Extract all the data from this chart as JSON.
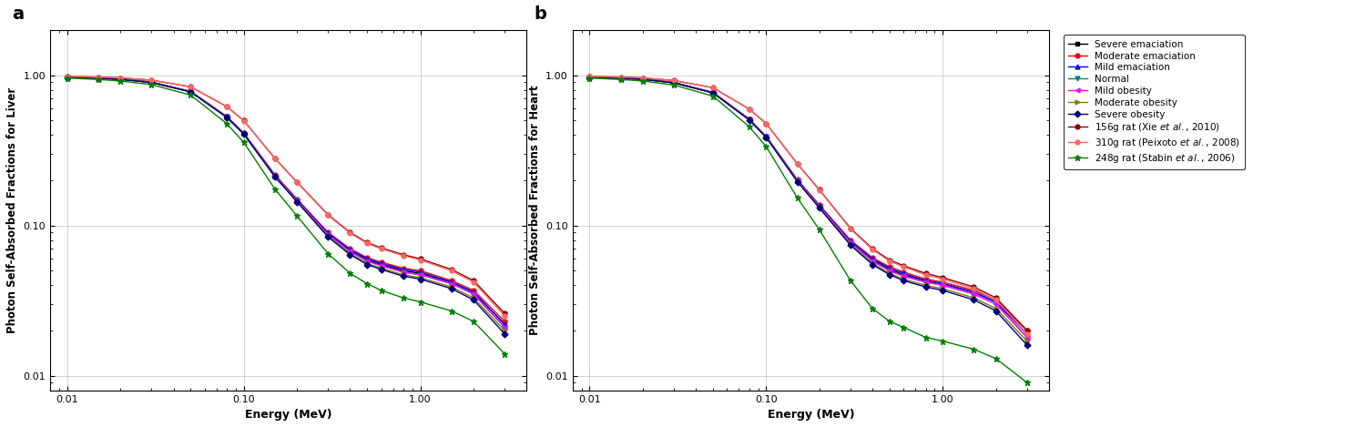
{
  "energy": [
    0.01,
    0.015,
    0.02,
    0.03,
    0.05,
    0.08,
    0.1,
    0.15,
    0.2,
    0.3,
    0.4,
    0.5,
    0.6,
    0.8,
    1.0,
    1.5,
    2.0,
    3.0
  ],
  "panel_a_ylabel": "Photon Self-Absorbed Fractions for Liver",
  "panel_b_ylabel": "Photon Self-Absorbed Fractions for Heart",
  "xlabel": "Energy (MeV)",
  "panel_a_label": "a",
  "panel_b_label": "b",
  "series": [
    {
      "label": "Severe emaciation",
      "color": "#000000",
      "marker": "s",
      "markersize": 3.5,
      "linewidth": 1.0,
      "liver": [
        0.975,
        0.96,
        0.945,
        0.9,
        0.78,
        0.53,
        0.41,
        0.215,
        0.148,
        0.088,
        0.068,
        0.059,
        0.055,
        0.05,
        0.048,
        0.042,
        0.036,
        0.022
      ],
      "heart": [
        0.975,
        0.96,
        0.945,
        0.895,
        0.768,
        0.51,
        0.39,
        0.2,
        0.135,
        0.078,
        0.059,
        0.051,
        0.047,
        0.043,
        0.041,
        0.036,
        0.031,
        0.019
      ]
    },
    {
      "label": "Moderate emaciation",
      "color": "#ff0000",
      "marker": "o",
      "markersize": 3.5,
      "linewidth": 1.0,
      "liver": [
        0.978,
        0.963,
        0.948,
        0.903,
        0.783,
        0.533,
        0.413,
        0.218,
        0.15,
        0.09,
        0.07,
        0.061,
        0.057,
        0.052,
        0.05,
        0.043,
        0.037,
        0.023
      ],
      "heart": [
        0.978,
        0.963,
        0.948,
        0.898,
        0.771,
        0.513,
        0.393,
        0.202,
        0.137,
        0.08,
        0.061,
        0.053,
        0.049,
        0.044,
        0.042,
        0.037,
        0.032,
        0.02
      ]
    },
    {
      "label": "Mild emaciation",
      "color": "#0000ff",
      "marker": "^",
      "markersize": 3.5,
      "linewidth": 1.0,
      "liver": [
        0.976,
        0.961,
        0.946,
        0.901,
        0.781,
        0.531,
        0.411,
        0.216,
        0.149,
        0.089,
        0.069,
        0.06,
        0.056,
        0.051,
        0.049,
        0.042,
        0.036,
        0.022
      ],
      "heart": [
        0.976,
        0.961,
        0.946,
        0.896,
        0.769,
        0.511,
        0.391,
        0.201,
        0.136,
        0.079,
        0.06,
        0.052,
        0.048,
        0.043,
        0.041,
        0.036,
        0.031,
        0.019
      ]
    },
    {
      "label": "Normal",
      "color": "#008080",
      "marker": "v",
      "markersize": 3.5,
      "linewidth": 1.0,
      "liver": [
        0.974,
        0.959,
        0.944,
        0.899,
        0.779,
        0.529,
        0.409,
        0.214,
        0.147,
        0.087,
        0.067,
        0.058,
        0.054,
        0.049,
        0.047,
        0.041,
        0.035,
        0.021
      ],
      "heart": [
        0.974,
        0.959,
        0.944,
        0.894,
        0.767,
        0.509,
        0.389,
        0.199,
        0.134,
        0.077,
        0.058,
        0.05,
        0.046,
        0.042,
        0.04,
        0.035,
        0.03,
        0.018
      ]
    },
    {
      "label": "Mild obesity",
      "color": "#ff00ff",
      "marker": "<",
      "markersize": 3.5,
      "linewidth": 1.0,
      "liver": [
        0.974,
        0.959,
        0.944,
        0.899,
        0.779,
        0.529,
        0.409,
        0.214,
        0.147,
        0.087,
        0.067,
        0.058,
        0.054,
        0.049,
        0.047,
        0.041,
        0.035,
        0.021
      ],
      "heart": [
        0.974,
        0.959,
        0.944,
        0.894,
        0.767,
        0.509,
        0.389,
        0.199,
        0.134,
        0.077,
        0.058,
        0.05,
        0.046,
        0.042,
        0.04,
        0.035,
        0.03,
        0.018
      ]
    },
    {
      "label": "Moderate obesity",
      "color": "#808000",
      "marker": ">",
      "markersize": 3.5,
      "linewidth": 1.0,
      "liver": [
        0.972,
        0.957,
        0.942,
        0.897,
        0.777,
        0.527,
        0.407,
        0.212,
        0.145,
        0.085,
        0.065,
        0.056,
        0.052,
        0.047,
        0.045,
        0.039,
        0.033,
        0.02
      ],
      "heart": [
        0.972,
        0.957,
        0.942,
        0.892,
        0.765,
        0.507,
        0.387,
        0.197,
        0.132,
        0.075,
        0.056,
        0.048,
        0.044,
        0.04,
        0.038,
        0.033,
        0.028,
        0.017
      ]
    },
    {
      "label": "Severe obesity",
      "color": "#000080",
      "marker": "D",
      "markersize": 3.5,
      "linewidth": 1.0,
      "liver": [
        0.971,
        0.956,
        0.941,
        0.896,
        0.776,
        0.526,
        0.406,
        0.211,
        0.144,
        0.084,
        0.064,
        0.055,
        0.051,
        0.046,
        0.044,
        0.038,
        0.032,
        0.019
      ],
      "heart": [
        0.971,
        0.956,
        0.941,
        0.891,
        0.764,
        0.506,
        0.386,
        0.196,
        0.131,
        0.074,
        0.055,
        0.047,
        0.043,
        0.039,
        0.037,
        0.032,
        0.027,
        0.016
      ]
    },
    {
      "label": "156g rat (Xie et al., 2010)",
      "color": "#8B0000",
      "marker": "o",
      "markersize": 3.5,
      "linewidth": 1.0,
      "liver": [
        0.985,
        0.975,
        0.963,
        0.93,
        0.84,
        0.62,
        0.5,
        0.28,
        0.195,
        0.118,
        0.09,
        0.077,
        0.071,
        0.064,
        0.06,
        0.051,
        0.043,
        0.026
      ],
      "heart": [
        0.985,
        0.975,
        0.963,
        0.925,
        0.828,
        0.598,
        0.478,
        0.258,
        0.173,
        0.096,
        0.07,
        0.059,
        0.054,
        0.048,
        0.045,
        0.039,
        0.033,
        0.02
      ]
    },
    {
      "label": "310g rat (Peixoto et al., 2008)",
      "color": "#ff6666",
      "marker": "o",
      "markersize": 3.5,
      "linewidth": 1.0,
      "liver": [
        0.984,
        0.974,
        0.962,
        0.929,
        0.839,
        0.619,
        0.499,
        0.279,
        0.194,
        0.117,
        0.089,
        0.076,
        0.07,
        0.063,
        0.059,
        0.05,
        0.042,
        0.025
      ],
      "heart": [
        0.984,
        0.974,
        0.962,
        0.924,
        0.827,
        0.597,
        0.477,
        0.257,
        0.172,
        0.095,
        0.069,
        0.058,
        0.053,
        0.047,
        0.044,
        0.038,
        0.032,
        0.019
      ]
    },
    {
      "label": "248g rat (Stabin et al., 2006)",
      "color": "#008000",
      "marker": "*",
      "markersize": 5,
      "linewidth": 1.0,
      "liver": [
        0.96,
        0.94,
        0.918,
        0.868,
        0.74,
        0.478,
        0.358,
        0.175,
        0.116,
        0.065,
        0.048,
        0.041,
        0.037,
        0.033,
        0.031,
        0.027,
        0.023,
        0.014
      ],
      "heart": [
        0.96,
        0.94,
        0.918,
        0.863,
        0.728,
        0.456,
        0.336,
        0.153,
        0.094,
        0.043,
        0.028,
        0.023,
        0.021,
        0.018,
        0.017,
        0.015,
        0.013,
        0.009
      ]
    }
  ]
}
